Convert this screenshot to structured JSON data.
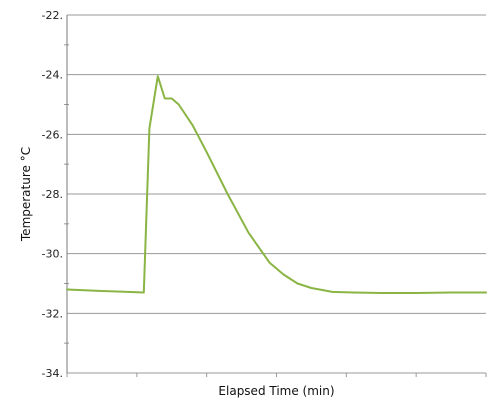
{
  "chart_data": {
    "type": "line",
    "title": "",
    "xlabel": "Elapsed Time (min)",
    "ylabel": "Temperature °C",
    "ylim": [
      -34,
      -22
    ],
    "xlim": [
      0,
      60
    ],
    "y_ticks": [
      -34,
      -32,
      -30,
      -28,
      -26,
      -24,
      -22
    ],
    "y_tick_labels": [
      "-34.",
      "-32.",
      "-30.",
      "-28.",
      "-26.",
      "-24.",
      "-22."
    ],
    "x_minor_ticks": [
      0,
      10,
      20,
      30,
      40,
      50,
      60
    ],
    "grid": true,
    "legend": "none",
    "series": [
      {
        "color": "#8ab544",
        "x": [
          0,
          5,
          11,
          11.8,
          13,
          14,
          15,
          16,
          18,
          20,
          23,
          26,
          29,
          31,
          33,
          35,
          38,
          41,
          45,
          50,
          55,
          60
        ],
        "y": [
          -31.2,
          -31.25,
          -31.3,
          -25.8,
          -24.05,
          -24.8,
          -24.8,
          -25.0,
          -25.7,
          -26.6,
          -28.0,
          -29.3,
          -30.3,
          -30.7,
          -31.0,
          -31.15,
          -31.28,
          -31.3,
          -31.32,
          -31.32,
          -31.3,
          -31.3
        ]
      }
    ]
  }
}
